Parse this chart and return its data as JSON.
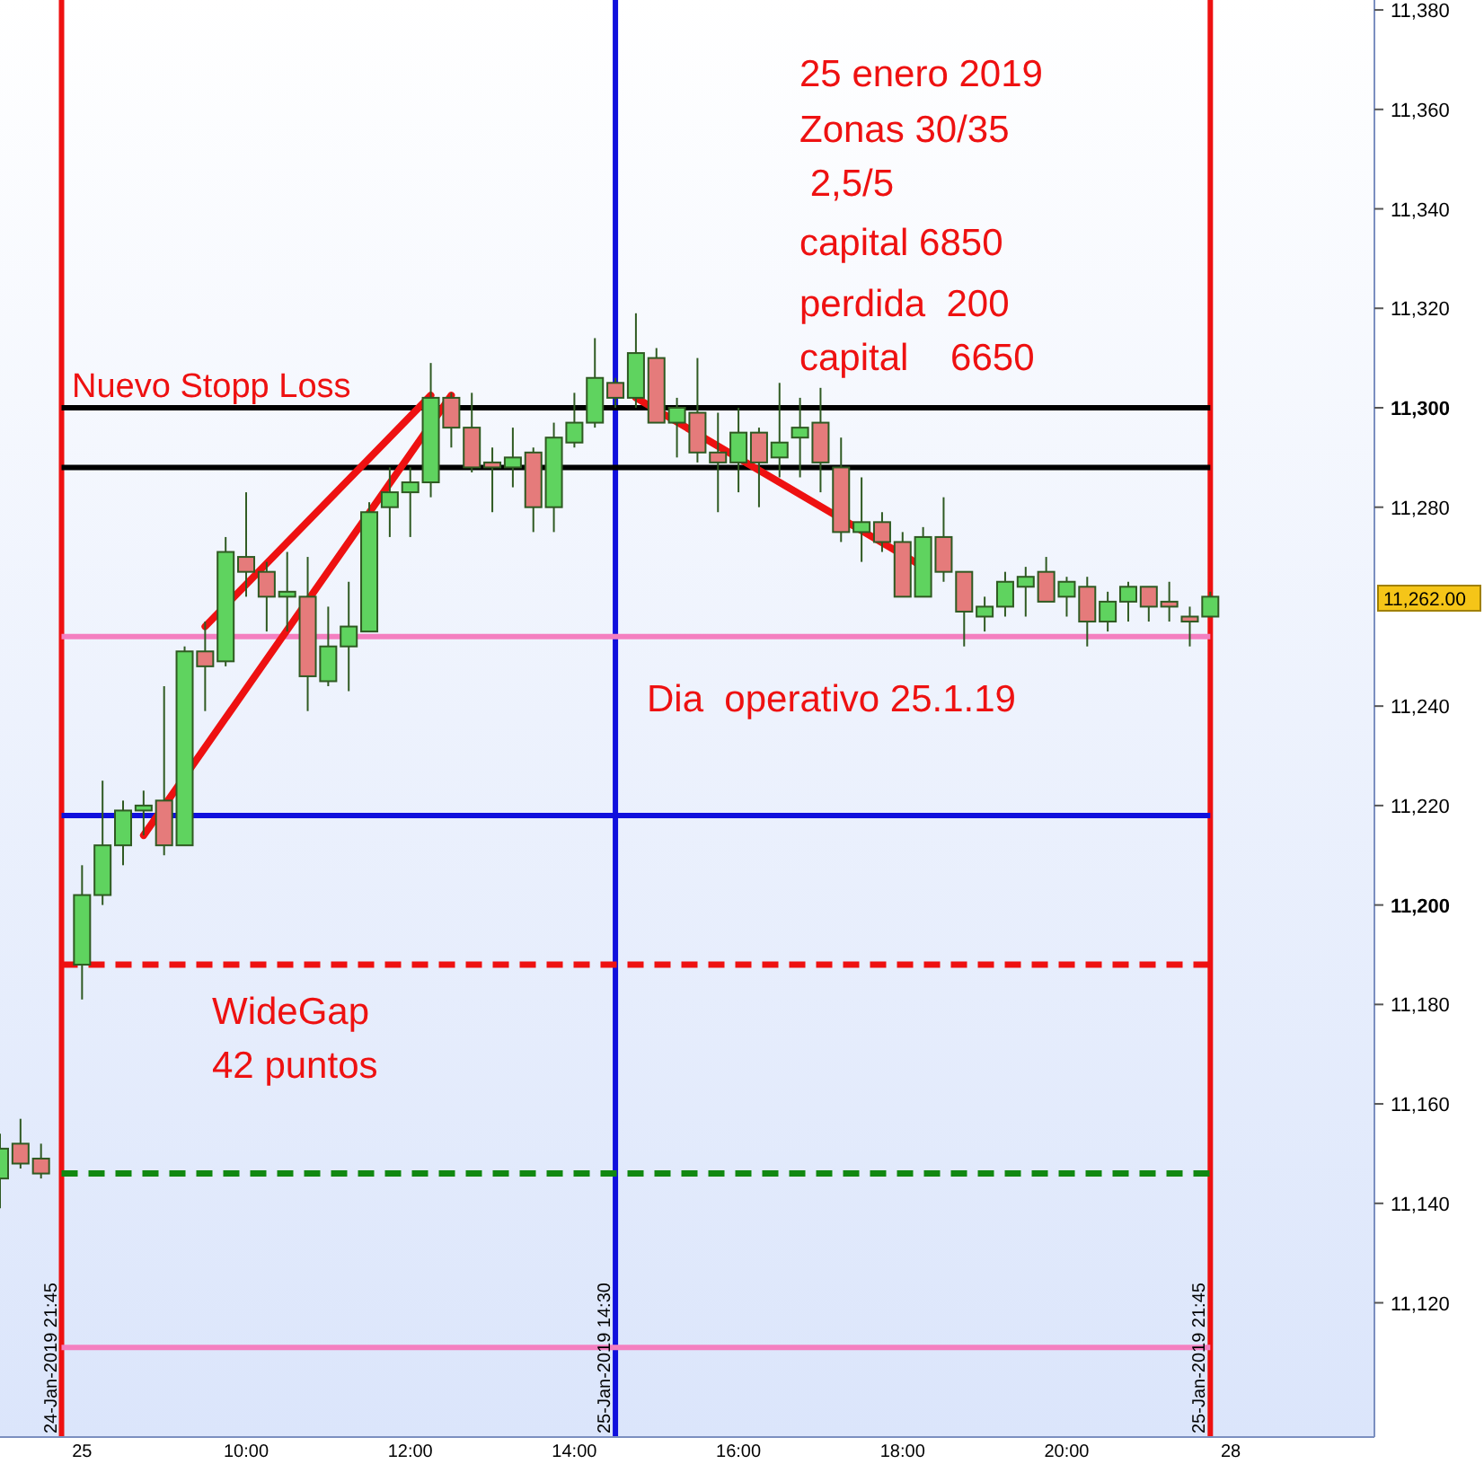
{
  "chart_data": {
    "type": "candlestick",
    "categories": [
      null,
      null,
      null,
      "24-Jan-2019 21:45",
      "25",
      null,
      null,
      null,
      null,
      null,
      null,
      null,
      "10:00",
      null,
      null,
      null,
      null,
      null,
      null,
      null,
      "12:00",
      null,
      null,
      null,
      null,
      null,
      null,
      null,
      "14:00",
      null,
      "25-Jan-2019 14:30",
      null,
      null,
      null,
      null,
      null,
      "16:00",
      null,
      null,
      null,
      null,
      null,
      null,
      null,
      "18:00",
      null,
      null,
      null,
      null,
      null,
      null,
      null,
      "20:00",
      null,
      null,
      null,
      null,
      null,
      null,
      "25-Jan-2019 21:45",
      "28",
      null,
      null,
      null,
      null,
      null,
      null,
      null
    ],
    "ohlc": [
      [
        11145,
        11154,
        11139,
        11151
      ],
      [
        11152,
        11157,
        11147,
        11148
      ],
      [
        11149,
        11152,
        11145,
        11146
      ],
      null,
      [
        11188,
        11208,
        11181,
        11202
      ],
      [
        11202,
        11225,
        11200,
        11212
      ],
      [
        11212,
        11221,
        11208,
        11219
      ],
      [
        11219,
        11223,
        11214,
        11220
      ],
      [
        11221,
        11244,
        11210,
        11212
      ],
      [
        11212,
        11252,
        11212,
        11251
      ],
      [
        11251,
        11257,
        11239,
        11248
      ],
      [
        11249,
        11274,
        11248,
        11271
      ],
      [
        11270,
        11283,
        11262,
        11267
      ],
      [
        11267,
        11269,
        11255,
        11262
      ],
      [
        11262,
        11271,
        11255,
        11263
      ],
      [
        11262,
        11270,
        11239,
        11246
      ],
      [
        11245,
        11260,
        11244,
        11252
      ],
      [
        11252,
        11265,
        11243,
        11256
      ],
      [
        11255,
        11281,
        11255,
        11279
      ],
      [
        11280,
        11288,
        11274,
        11283
      ],
      [
        11283,
        11288,
        11274,
        11285
      ],
      [
        11285,
        11309,
        11282,
        11302
      ],
      [
        11302,
        11303,
        11292,
        11296
      ],
      [
        11296,
        11303,
        11287,
        11288
      ],
      [
        11289,
        11292,
        11279,
        11288
      ],
      [
        11288,
        11296,
        11284,
        11290
      ],
      [
        11291,
        11292,
        11275,
        11280
      ],
      [
        11280,
        11297,
        11275,
        11294
      ],
      [
        11293,
        11303,
        11292,
        11297
      ],
      [
        11297,
        11314,
        11296,
        11306
      ],
      [
        11305,
        11306,
        11300,
        11302
      ],
      [
        11302,
        11319,
        11300,
        11311
      ],
      [
        11310,
        11312,
        11297,
        11297
      ],
      [
        11297,
        11302,
        11290,
        11300
      ],
      [
        11299,
        11310,
        11289,
        11291
      ],
      [
        11291,
        11299,
        11279,
        11289
      ],
      [
        11289,
        11300,
        11283,
        11295
      ],
      [
        11295,
        11296,
        11280,
        11289
      ],
      [
        11290,
        11305,
        11286,
        11293
      ],
      [
        11294,
        11302,
        11286,
        11296
      ],
      [
        11297,
        11304,
        11283,
        11289
      ],
      [
        11288,
        11294,
        11273,
        11275
      ],
      [
        11275,
        11286,
        11269,
        11277
      ],
      [
        11277,
        11279,
        11271,
        11273
      ],
      [
        11273,
        11275,
        11262,
        11262
      ],
      [
        11262,
        11276,
        11262,
        11274
      ],
      [
        11274,
        11282,
        11265,
        11267
      ],
      [
        11267,
        11267,
        11252,
        11259
      ],
      [
        11258,
        11262,
        11255,
        11260
      ],
      [
        11260,
        11267,
        11258,
        11265
      ],
      [
        11264,
        11268,
        11258,
        11266
      ],
      [
        11267,
        11270,
        11261,
        11261
      ],
      [
        11262,
        11266,
        11258,
        11265
      ],
      [
        11264,
        11266,
        11252,
        11257
      ],
      [
        11257,
        11263,
        11255,
        11261
      ],
      [
        11261,
        11265,
        11257,
        11264
      ],
      [
        11264,
        11264,
        11257,
        11260
      ],
      [
        11261,
        11265,
        11257,
        11260
      ],
      [
        11258,
        11260,
        11252,
        11257
      ],
      [
        11258,
        11263,
        11258,
        11262
      ],
      null,
      null,
      null,
      null,
      null,
      null,
      null,
      null
    ],
    "colors": [
      "#5fd35f",
      "#e57b7b",
      "#e57b7b",
      null,
      "#5fd35f",
      "#5fd35f",
      "#5fd35f",
      "#5fd35f",
      "#e57b7b",
      "#5fd35f",
      "#e57b7b",
      "#5fd35f",
      "#e57b7b",
      "#e57b7b",
      "#5fd35f",
      "#e57b7b",
      "#5fd35f",
      "#5fd35f",
      "#5fd35f",
      "#5fd35f",
      "#5fd35f",
      "#5fd35f",
      "#e57b7b",
      "#e57b7b",
      "#e57b7b",
      "#5fd35f",
      "#e57b7b",
      "#5fd35f",
      "#5fd35f",
      "#5fd35f",
      "#e57b7b",
      "#5fd35f",
      "#e57b7b",
      "#5fd35f",
      "#e57b7b",
      "#e57b7b",
      "#5fd35f",
      "#e57b7b",
      "#5fd35f",
      "#5fd35f",
      "#e57b7b",
      "#e57b7b",
      "#5fd35f",
      "#e57b7b",
      "#e57b7b",
      "#5fd35f",
      "#e57b7b",
      "#e57b7b",
      "#5fd35f",
      "#5fd35f",
      "#5fd35f",
      "#e57b7b",
      "#5fd35f",
      "#e57b7b",
      "#5fd35f",
      "#5fd35f",
      "#e57b7b",
      "#e57b7b",
      "#e57b7b",
      "#5fd35f",
      null,
      null,
      null,
      null,
      null,
      null,
      null,
      null
    ],
    "series": [
      {
        "type": "line",
        "color": "#ee1111",
        "values": [
          null,
          null,
          null,
          null,
          null,
          null,
          null,
          11214,
          null,
          null,
          null,
          null,
          null,
          null,
          null,
          null,
          null,
          null,
          null,
          null,
          null,
          null,
          11302.5,
          null,
          null,
          null,
          null,
          null,
          null,
          null,
          null,
          null,
          null,
          null,
          null,
          null,
          null,
          null,
          null,
          null,
          null,
          null,
          null,
          null,
          null,
          null,
          null,
          null,
          null,
          null,
          null,
          null,
          null,
          null,
          null,
          null,
          null,
          null,
          null,
          null,
          null,
          null,
          null,
          null,
          null,
          null,
          null,
          null
        ]
      },
      {
        "type": "line",
        "color": "#ee1111",
        "values": [
          null,
          null,
          null,
          null,
          null,
          null,
          null,
          null,
          null,
          null,
          11256,
          null,
          null,
          null,
          null,
          null,
          null,
          null,
          null,
          null,
          null,
          11302.5,
          null,
          null,
          null,
          null,
          null,
          null,
          null,
          null,
          null,
          null,
          null,
          null,
          null,
          null,
          null,
          null,
          null,
          null,
          null,
          null,
          null,
          null,
          null,
          null,
          null,
          null,
          null,
          null,
          null,
          null,
          null,
          null,
          null,
          null,
          null,
          null,
          null,
          null,
          null,
          null,
          null,
          null,
          null,
          null,
          null,
          null
        ]
      },
      {
        "type": "line",
        "color": "#ee1111",
        "values": [
          null,
          null,
          null,
          null,
          null,
          null,
          null,
          null,
          null,
          null,
          null,
          null,
          null,
          null,
          null,
          null,
          null,
          null,
          null,
          null,
          null,
          null,
          null,
          null,
          null,
          null,
          null,
          null,
          null,
          null,
          null,
          11302,
          null,
          null,
          null,
          null,
          null,
          null,
          null,
          null,
          null,
          null,
          null,
          null,
          null,
          11268,
          null,
          null,
          null,
          null,
          null,
          null,
          null,
          null,
          null,
          null,
          null,
          null,
          null,
          null,
          null,
          null,
          null,
          null,
          null,
          null,
          null,
          null
        ]
      }
    ],
    "ylim": [
      11093,
      11382
    ],
    "yticks": [
      {
        "value": 11120,
        "label": "11,120"
      },
      {
        "value": 11140,
        "label": "11,140"
      },
      {
        "value": 11160,
        "label": "11,160"
      },
      {
        "value": 11180,
        "label": "11,180"
      },
      {
        "value": 11200,
        "label": "11,200"
      },
      {
        "value": 11220,
        "label": "11,220"
      },
      {
        "value": 11240,
        "label": "11,240"
      },
      {
        "value": 11280,
        "label": "11,280"
      },
      {
        "value": 11300,
        "label": "11,300"
      },
      {
        "value": 11320,
        "label": "11,320"
      },
      {
        "value": 11340,
        "label": "11,340"
      },
      {
        "value": 11360,
        "label": "11,360"
      },
      {
        "value": 11380,
        "label": "11,380"
      }
    ],
    "ref_lines": [
      {
        "axis": "x",
        "value": "24-Jan-2019 21:45",
        "color": "#ee1111"
      },
      {
        "axis": "x",
        "value": "25-Jan-2019 14:30",
        "color": "#1010dd"
      },
      {
        "axis": "x",
        "value": "25-Jan-2019 21:45",
        "color": "#ee1111"
      },
      {
        "axis": "y",
        "value": 11300,
        "label": "Nuevo Stopp Loss",
        "color": "#000000"
      },
      {
        "axis": "y",
        "value": 11288,
        "color": "#000000"
      },
      {
        "axis": "y",
        "value": 11254,
        "color": "#f47fc0"
      },
      {
        "axis": "y",
        "value": 11218,
        "color": "#1010dd"
      },
      {
        "axis": "y",
        "value": 11188,
        "label": "WideGap\n42 puntos",
        "color": "#ee1111",
        "line_style": "dashed"
      },
      {
        "axis": "y",
        "value": 11146,
        "color": "#118811",
        "line_style": "dashed"
      },
      {
        "axis": "y",
        "value": 11111,
        "color": "#f47fc0"
      }
    ],
    "annotations": [
      "25 enero 2019",
      "Zonas 30/35",
      " 2,5/5",
      "capital 6850",
      "perdida  200",
      "capital    6650",
      "Dia  operativo 25.1.19",
      "11,262.00"
    ]
  }
}
